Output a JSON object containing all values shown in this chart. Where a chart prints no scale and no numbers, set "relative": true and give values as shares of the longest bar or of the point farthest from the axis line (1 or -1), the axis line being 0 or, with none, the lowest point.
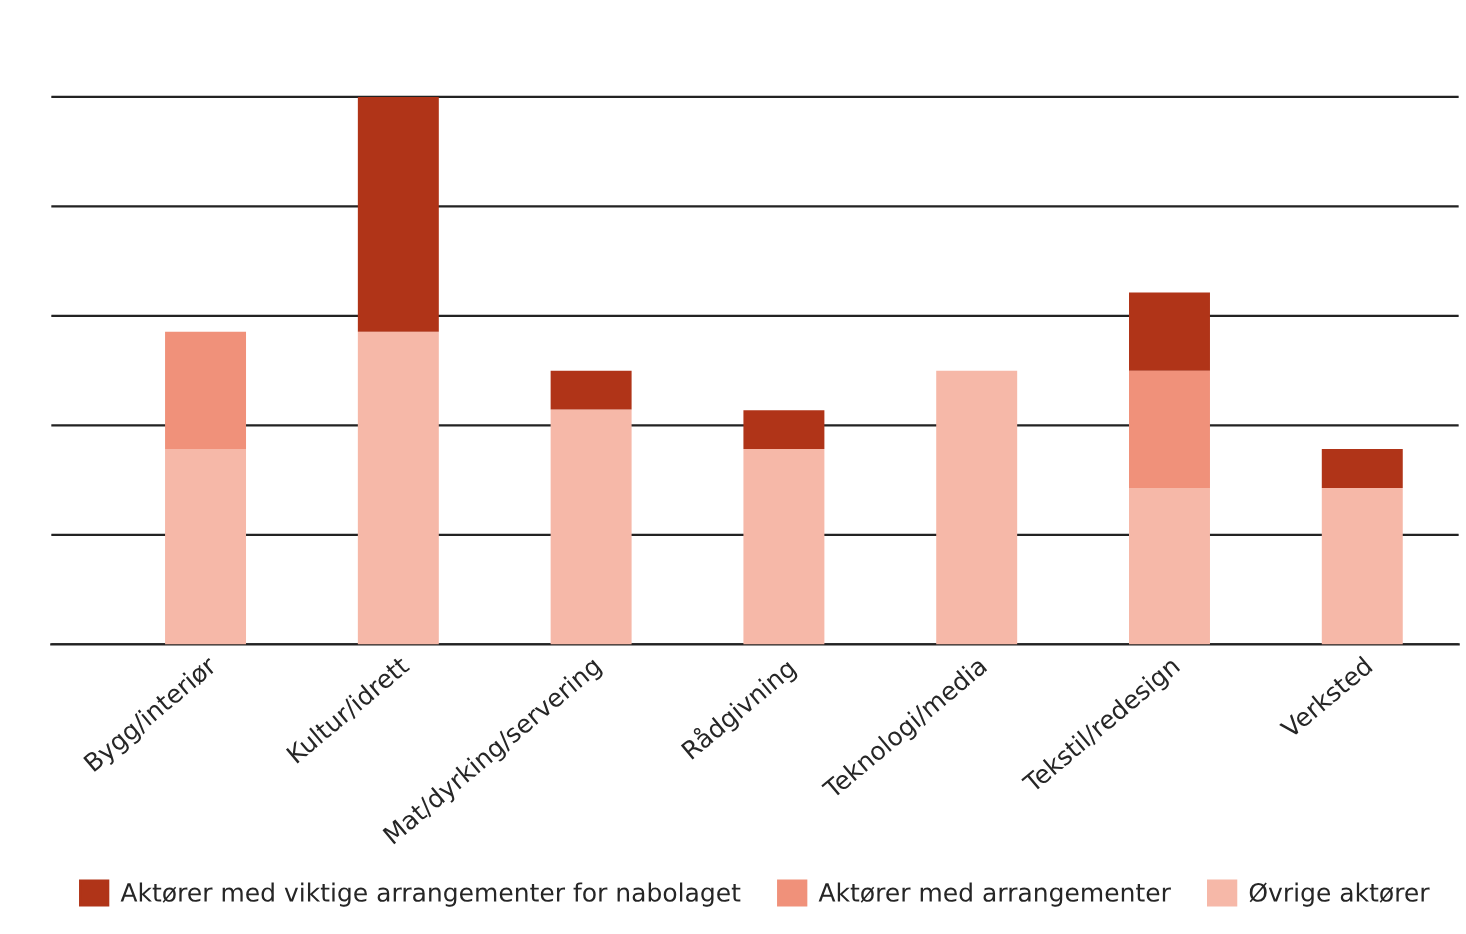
{
  "chart_data": {
    "type": "bar",
    "stacked": true,
    "relative": true,
    "grid": "y",
    "legend": "bottom",
    "categories": [
      "Bygg/interiør",
      "Kultur/idrett",
      "Mat/dyrking/servering",
      "Rådgivning",
      "Teknologi/media",
      "Tekstil/redesign",
      "Verksted"
    ],
    "series": [
      {
        "name": "Øvrige aktører",
        "color": "#f6b8a8",
        "values": [
          0.357,
          0.571,
          0.429,
          0.357,
          0.5,
          0.286,
          0.286
        ]
      },
      {
        "name": "Aktører med arrangementer",
        "color": "#f0917a",
        "values": [
          0.214,
          0,
          0,
          0,
          0,
          0.214,
          0
        ]
      },
      {
        "name": "Aktører med viktige arrangementer for nabolaget",
        "color": "#b03418",
        "values": [
          0,
          0.429,
          0.071,
          0.071,
          0,
          0.143,
          0.071
        ]
      }
    ]
  }
}
